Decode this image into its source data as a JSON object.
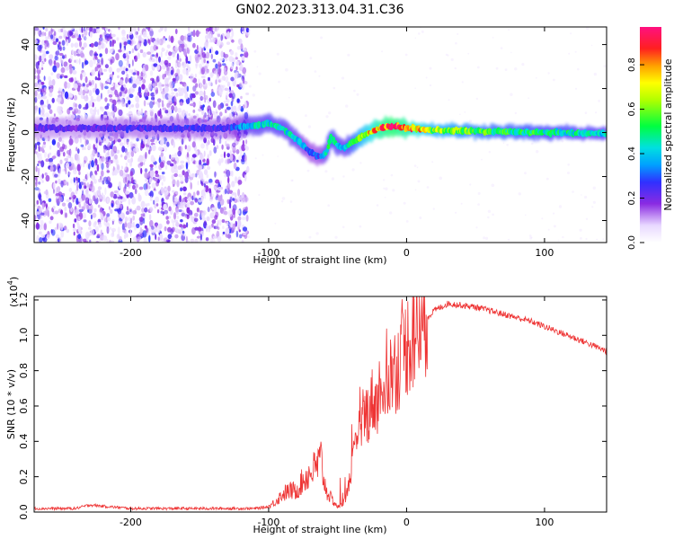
{
  "title": "GN02.2023.313.04.31.C36",
  "chart_data": [
    {
      "type": "heatmap",
      "xlabel": "Height of straight line (km)",
      "ylabel": "Frequency (Hz)",
      "xlim": [
        -270,
        145
      ],
      "ylim": [
        -50,
        48
      ],
      "xticks": [
        -200,
        -100,
        0,
        100
      ],
      "yticks": [
        -40,
        -20,
        0,
        20,
        40
      ],
      "colorbar": {
        "label": "Normalized spectral amplitude",
        "range": [
          0,
          0.97
        ],
        "ticks": [
          0.0,
          0.2,
          0.4,
          0.6,
          0.8
        ]
      },
      "ridge": {
        "x": [
          -270,
          -240,
          -200,
          -160,
          -130,
          -115,
          -100,
          -90,
          -80,
          -70,
          -63,
          -58,
          -55,
          -50,
          -45,
          -38,
          -30,
          -20,
          -10,
          0,
          20,
          60,
          100,
          145
        ],
        "freq": [
          2,
          2,
          2,
          2,
          2,
          3,
          4,
          2,
          -3,
          -9,
          -11,
          -9,
          -2,
          -6,
          -7,
          -4,
          -1,
          2,
          3,
          2,
          1,
          0.5,
          0,
          -0.5
        ],
        "amplitude": [
          0.22,
          0.22,
          0.25,
          0.25,
          0.25,
          0.42,
          0.45,
          0.45,
          0.42,
          0.3,
          0.3,
          0.45,
          0.5,
          0.45,
          0.4,
          0.55,
          0.7,
          0.85,
          0.92,
          0.85,
          0.65,
          0.55,
          0.5,
          0.45
        ]
      }
    },
    {
      "type": "line",
      "xlabel": "Height of straight line (km)",
      "ylabel": "SNR (10 * v/v)",
      "y_multiplier": "(x10",
      "y_exponent": "4",
      "y_multiplier_close": ")",
      "xlim": [
        -270,
        145
      ],
      "ylim": [
        0,
        1.22
      ],
      "xticks": [
        -200,
        -100,
        0,
        100
      ],
      "yticks": [
        0.0,
        0.2,
        0.4,
        0.6,
        0.8,
        1.0,
        1.2
      ],
      "color": "#ee3333",
      "series": [
        {
          "x": [
            -270,
            -240,
            -230,
            -200,
            -150,
            -110,
            -100,
            -95,
            -90,
            -85,
            -80,
            -75,
            -70,
            -65,
            -62,
            -60,
            -58,
            -55,
            -52,
            -50,
            -47,
            -44,
            -42,
            -40,
            -37,
            -35,
            -32,
            -30,
            -27,
            -24,
            -22,
            -20,
            -17,
            -14,
            -12,
            -10,
            -7,
            -5,
            -2,
            0,
            5,
            10,
            15,
            20,
            25,
            30,
            40,
            50,
            60,
            70,
            80,
            90,
            100,
            110,
            120,
            130,
            145
          ],
          "y": [
            0.02,
            0.02,
            0.04,
            0.02,
            0.02,
            0.02,
            0.03,
            0.06,
            0.1,
            0.12,
            0.12,
            0.18,
            0.22,
            0.26,
            0.3,
            0.18,
            0.12,
            0.08,
            0.05,
            0.03,
            0.04,
            0.08,
            0.15,
            0.25,
            0.35,
            0.45,
            0.5,
            0.55,
            0.58,
            0.65,
            0.6,
            0.68,
            0.72,
            0.75,
            0.78,
            0.8,
            0.82,
            0.85,
            0.9,
            0.95,
            1.0,
            1.05,
            1.1,
            1.14,
            1.16,
            1.18,
            1.17,
            1.16,
            1.14,
            1.12,
            1.1,
            1.08,
            1.05,
            1.02,
            0.99,
            0.96,
            0.91
          ]
        }
      ]
    }
  ]
}
